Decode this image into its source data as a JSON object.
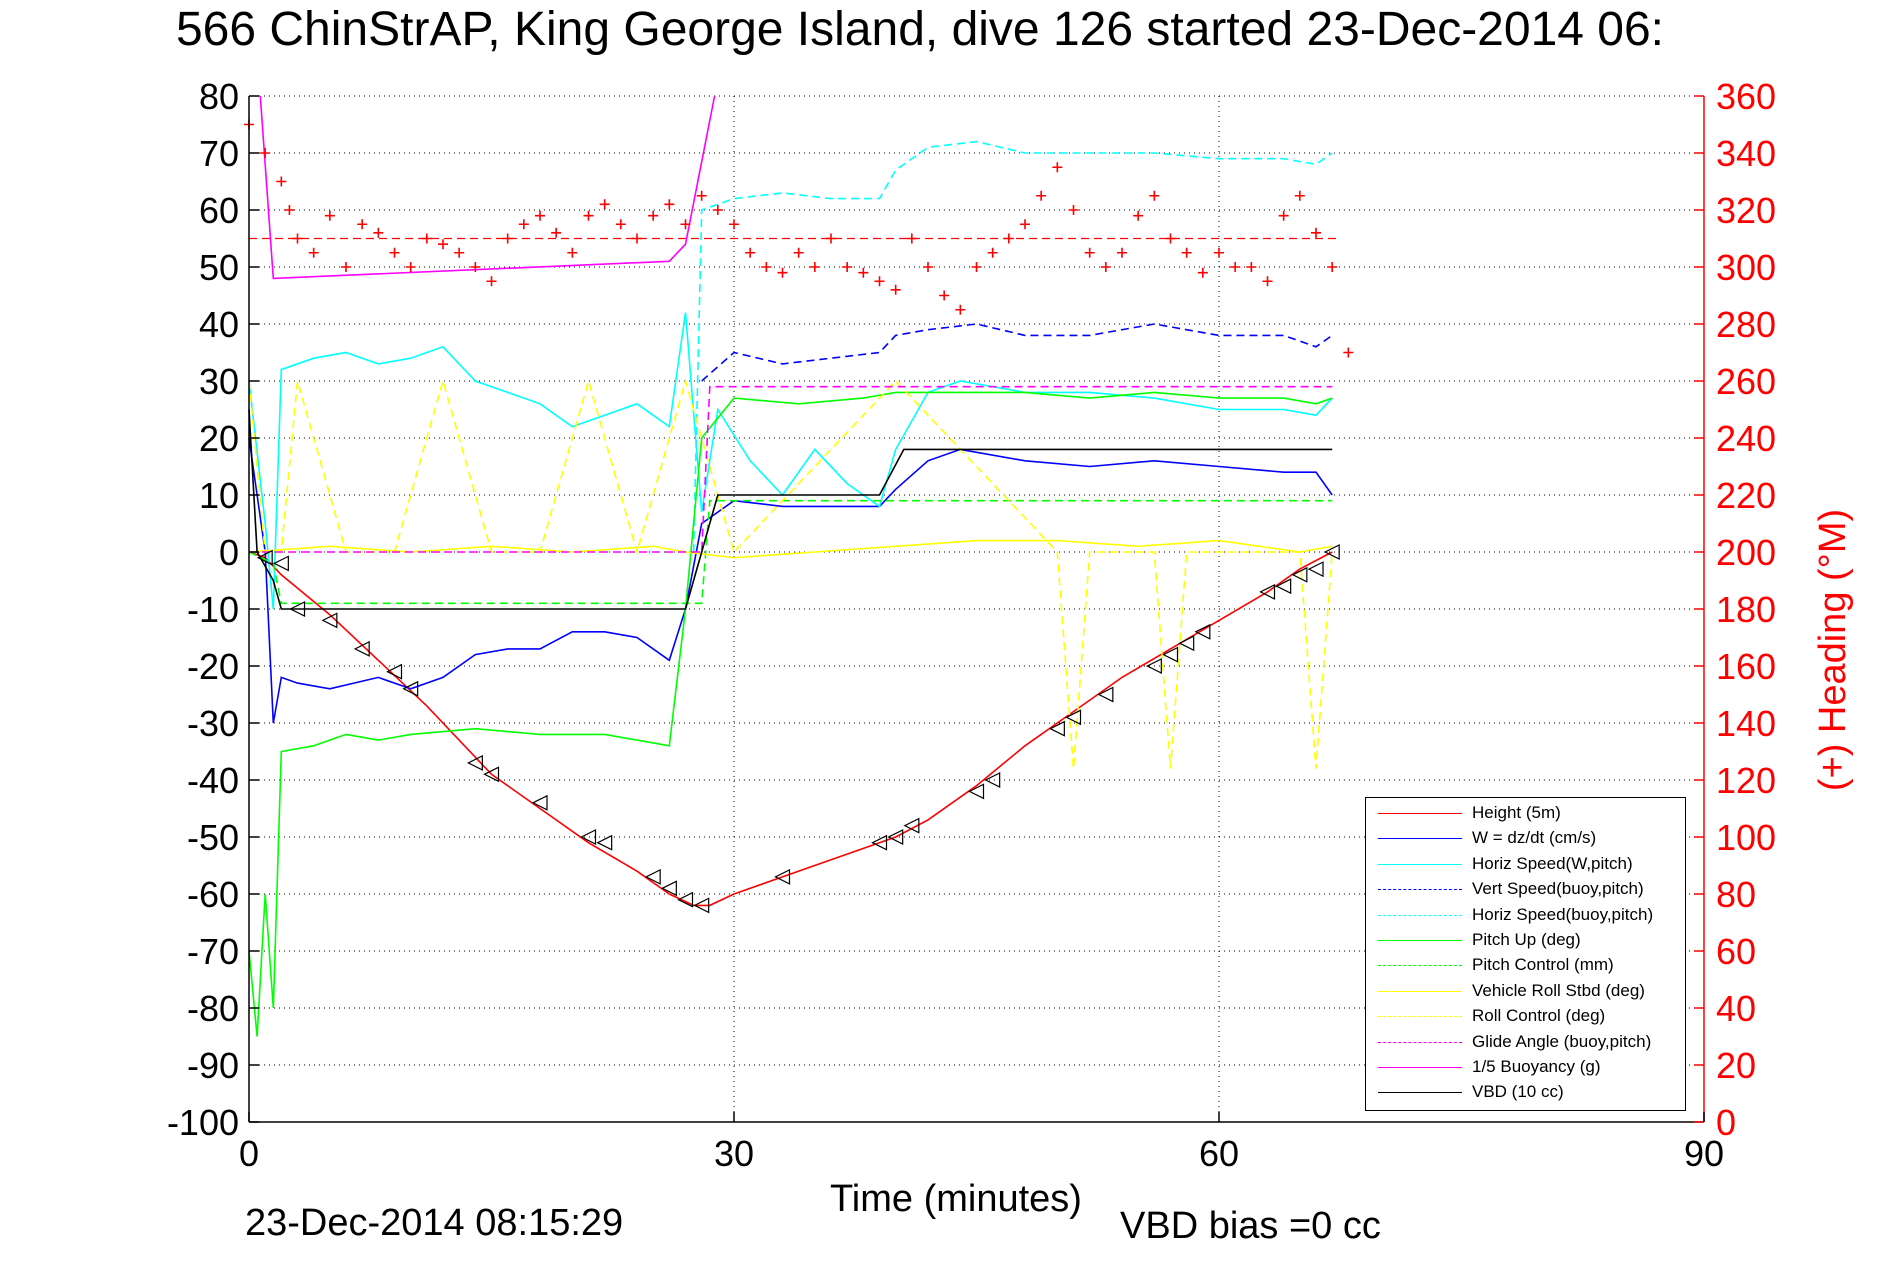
{
  "title": "566 ChinStrAP, King George Island, dive 126 started 23-Dec-2014 06:",
  "timestamp": "23-Dec-2014 08:15:29",
  "vbd_bias": "VBD bias =0 cc",
  "chart_data": {
    "type": "line",
    "title": "566 ChinStrAP, King George Island, dive 126 started 23-Dec-2014 06:",
    "xlabel": "Time (minutes)",
    "ylabel": "",
    "y2label": "(+) Heading (°M)",
    "xlim": [
      0,
      90
    ],
    "ylim": [
      -100,
      80
    ],
    "y2lim": [
      0,
      360
    ],
    "xticks": [
      "0",
      "30",
      "60",
      "90"
    ],
    "yticks": [
      "80",
      "70",
      "60",
      "50",
      "40",
      "30",
      "20",
      "10",
      "0",
      "-10",
      "-20",
      "-30",
      "-40",
      "-50",
      "-60",
      "-70",
      "-80",
      "-90",
      "-100"
    ],
    "y2ticks": [
      "360",
      "340",
      "320",
      "300",
      "280",
      "260",
      "240",
      "220",
      "200",
      "180",
      "160",
      "140",
      "120",
      "100",
      "80",
      "60",
      "40",
      "20",
      "0"
    ],
    "grid": true,
    "legend_position": "bottom-right",
    "colors": {
      "red": "#ff0000",
      "blue": "#0000ff",
      "cyan": "#00ffff",
      "green": "#00ff00",
      "yellow": "#ffff00",
      "magenta": "#ff00ff",
      "black": "#000000"
    },
    "series": [
      {
        "name": "Height (5m)",
        "color": "#ff0000",
        "dash": false,
        "x": [
          0,
          1,
          2,
          5,
          8,
          11,
          15,
          18,
          21,
          24,
          26,
          27.5,
          28.5,
          30,
          33,
          36,
          39,
          40,
          42,
          45,
          48,
          51,
          54,
          57,
          60,
          63,
          65,
          67
        ],
        "y": [
          0,
          -1,
          -4,
          -11,
          -19,
          -27,
          -39,
          -45,
          -51,
          -56,
          -60,
          -62,
          -62,
          -60,
          -57,
          -54,
          -51,
          -50,
          -47,
          -41,
          -34,
          -28,
          -22,
          -17,
          -12,
          -7,
          -3,
          0
        ]
      },
      {
        "name": "W = dz/dt (cm/s)",
        "color": "#0000ff",
        "dash": false,
        "x": [
          0,
          1,
          1.5,
          2,
          3,
          5,
          8,
          10,
          12,
          14,
          16,
          18,
          20,
          22,
          24,
          26,
          27,
          28,
          30,
          33,
          36,
          39,
          40,
          42,
          44,
          48,
          52,
          56,
          60,
          64,
          66,
          67
        ],
        "y": [
          20,
          0,
          -30,
          -22,
          -23,
          -24,
          -22,
          -24,
          -22,
          -18,
          -17,
          -17,
          -14,
          -14,
          -15,
          -19,
          -10,
          5,
          9,
          8,
          8,
          8,
          11,
          16,
          18,
          16,
          15,
          16,
          15,
          14,
          14,
          10
        ]
      },
      {
        "name": "Horiz Speed(W,pitch)",
        "color": "#00ffff",
        "dash": false,
        "x": [
          0,
          1,
          1.5,
          2,
          4,
          6,
          8,
          10,
          12,
          14,
          16,
          18,
          20,
          22,
          24,
          26,
          27,
          28,
          29,
          31,
          33,
          35,
          37,
          39,
          40,
          42,
          44,
          48,
          52,
          56,
          60,
          64,
          66,
          67
        ],
        "y": [
          30,
          5,
          -10,
          32,
          34,
          35,
          33,
          34,
          36,
          30,
          28,
          26,
          22,
          24,
          26,
          22,
          42,
          7,
          25,
          16,
          10,
          18,
          12,
          8,
          18,
          28,
          30,
          28,
          28,
          27,
          25,
          25,
          24,
          27
        ]
      },
      {
        "name": "Vert Speed(buoy,pitch)",
        "color": "#0000ff",
        "dash": true,
        "x": [
          28,
          30,
          33,
          36,
          39,
          40,
          42,
          45,
          48,
          52,
          56,
          60,
          64,
          66,
          67
        ],
        "y": [
          30,
          35,
          33,
          34,
          35,
          38,
          39,
          40,
          38,
          38,
          40,
          38,
          38,
          36,
          38
        ]
      },
      {
        "name": "Horiz Speed(buoy,pitch)",
        "color": "#00ffff",
        "dash": true,
        "x": [
          27.5,
          28,
          30,
          33,
          36,
          39,
          40,
          42,
          45,
          48,
          52,
          56,
          60,
          64,
          66,
          67
        ],
        "y": [
          0,
          60,
          62,
          63,
          62,
          62,
          67,
          71,
          72,
          70,
          70,
          70,
          69,
          69,
          68,
          70
        ]
      },
      {
        "name": "Pitch Up (deg)",
        "color": "#00ff00",
        "dash": false,
        "x": [
          0,
          0.5,
          1,
          1.5,
          2,
          4,
          6,
          8,
          10,
          14,
          18,
          22,
          26,
          27,
          28,
          30,
          34,
          38,
          40,
          44,
          48,
          52,
          56,
          60,
          64,
          66,
          67
        ],
        "y": [
          -70,
          -85,
          -60,
          -80,
          -35,
          -34,
          -32,
          -33,
          -32,
          -31,
          -32,
          -32,
          -34,
          -10,
          20,
          27,
          26,
          27,
          28,
          28,
          28,
          27,
          28,
          27,
          27,
          26,
          27
        ]
      },
      {
        "name": "Pitch Control (mm)",
        "color": "#00ff00",
        "dash": true,
        "x": [
          0,
          1.5,
          2,
          28,
          28.5,
          67
        ],
        "y": [
          0,
          -2,
          -9,
          -9,
          9,
          9
        ]
      },
      {
        "name": "Vehicle Roll Stbd (deg)",
        "color": "#ffff00",
        "dash": false,
        "x": [
          0,
          5,
          10,
          15,
          20,
          25,
          27,
          30,
          35,
          40,
          45,
          50,
          55,
          60,
          65,
          67
        ],
        "y": [
          0,
          1,
          0,
          1,
          0,
          1,
          0,
          -1,
          0,
          1,
          2,
          2,
          1,
          2,
          0,
          1
        ]
      },
      {
        "name": "Roll Control (deg)",
        "color": "#ffff00",
        "dash": true,
        "x": [
          0,
          1,
          2,
          3,
          6,
          9,
          12,
          15,
          18,
          21,
          24,
          27,
          30,
          40,
          50,
          51,
          52,
          56,
          57,
          58,
          65,
          66,
          67
        ],
        "y": [
          30,
          0,
          0,
          30,
          0,
          0,
          30,
          0,
          0,
          30,
          0,
          30,
          0,
          30,
          0,
          -38,
          0,
          0,
          -38,
          0,
          0,
          -38,
          0
        ]
      },
      {
        "name": "Glide Angle (buoy,pitch)",
        "color": "#ff00ff",
        "dash": true,
        "x": [
          0,
          28,
          28.5,
          67
        ],
        "y": [
          0,
          0,
          29,
          29
        ]
      },
      {
        "name": "1/5 Buoyancy (g)",
        "color": "#ff00ff",
        "dash": false,
        "x": [
          0.7,
          1.5,
          26,
          27,
          28.8
        ],
        "y": [
          80,
          48,
          51,
          54,
          80
        ]
      },
      {
        "name": "VBD (10 cc)",
        "color": "#000000",
        "dash": false,
        "x": [
          0,
          0.5,
          1.5,
          2,
          27,
          28,
          29,
          39,
          40.5,
          67
        ],
        "y": [
          25,
          0,
          -5,
          -10,
          -10,
          0,
          10,
          10,
          18,
          18
        ]
      }
    ],
    "heading": {
      "name": "(+) Heading (°M)",
      "color": "#ff0000",
      "marker": "+",
      "axis": "right",
      "reference": 310,
      "x": [
        0,
        1,
        2,
        2.5,
        3,
        4,
        5,
        6,
        7,
        8,
        9,
        10,
        11,
        12,
        13,
        14,
        15,
        16,
        17,
        18,
        19,
        20,
        21,
        22,
        23,
        24,
        25,
        26,
        27,
        28,
        29,
        30,
        31,
        32,
        33,
        34,
        35,
        36,
        37,
        38,
        39,
        40,
        41,
        42,
        43,
        44,
        45,
        46,
        47,
        48,
        49,
        50,
        51,
        52,
        53,
        54,
        55,
        56,
        57,
        58,
        59,
        60,
        61,
        62,
        63,
        64,
        65,
        66,
        67,
        68
      ],
      "y": [
        350,
        340,
        330,
        320,
        310,
        305,
        318,
        300,
        315,
        312,
        305,
        300,
        310,
        308,
        305,
        300,
        295,
        310,
        315,
        318,
        312,
        305,
        318,
        322,
        315,
        310,
        318,
        322,
        315,
        325,
        320,
        315,
        305,
        300,
        298,
        305,
        300,
        310,
        300,
        298,
        295,
        292,
        310,
        300,
        290,
        285,
        300,
        305,
        310,
        315,
        325,
        335,
        320,
        305,
        300,
        305,
        318,
        325,
        310,
        305,
        298,
        305,
        300,
        300,
        295,
        318,
        325,
        312,
        300,
        270
      ]
    },
    "height_markers": {
      "x": [
        1,
        2,
        3,
        5,
        7,
        9,
        10,
        14,
        15,
        18,
        21,
        22,
        25,
        26,
        27,
        28,
        33,
        39,
        40,
        41,
        45,
        46,
        50,
        51,
        53,
        56,
        57,
        58,
        59,
        63,
        64,
        65,
        66,
        67
      ],
      "y": [
        -1,
        -2,
        -10,
        -12,
        -17,
        -21,
        -24,
        -37,
        -39,
        -44,
        -50,
        -51,
        -57,
        -59,
        -61,
        -62,
        -57,
        -51,
        -50,
        -48,
        -42,
        -40,
        -31,
        -29,
        -25,
        -20,
        -18,
        -16,
        -14,
        -7,
        -6,
        -4,
        -3,
        0
      ]
    }
  },
  "legend": {
    "items": [
      {
        "label": "Height (5m)",
        "color": "#ff0000",
        "dash": false
      },
      {
        "label": "W = dz/dt (cm/s)",
        "color": "#0000ff",
        "dash": false
      },
      {
        "label": "Horiz Speed(W,pitch)",
        "color": "#00ffff",
        "dash": false
      },
      {
        "label": "Vert Speed(buoy,pitch)",
        "color": "#0000ff",
        "dash": true
      },
      {
        "label": "Horiz Speed(buoy,pitch)",
        "color": "#00ffff",
        "dash": true
      },
      {
        "label": "Pitch Up (deg)",
        "color": "#00ff00",
        "dash": false
      },
      {
        "label": "Pitch Control (mm)",
        "color": "#00ff00",
        "dash": true
      },
      {
        "label": "Vehicle Roll Stbd (deg)",
        "color": "#ffff00",
        "dash": false
      },
      {
        "label": "Roll Control (deg)",
        "color": "#ffff00",
        "dash": true
      },
      {
        "label": "Glide Angle (buoy,pitch)",
        "color": "#ff00ff",
        "dash": true
      },
      {
        "label": "1/5 Buoyancy (g)",
        "color": "#ff00ff",
        "dash": false
      },
      {
        "label": "VBD (10 cc)",
        "color": "#000000",
        "dash": false
      }
    ]
  }
}
